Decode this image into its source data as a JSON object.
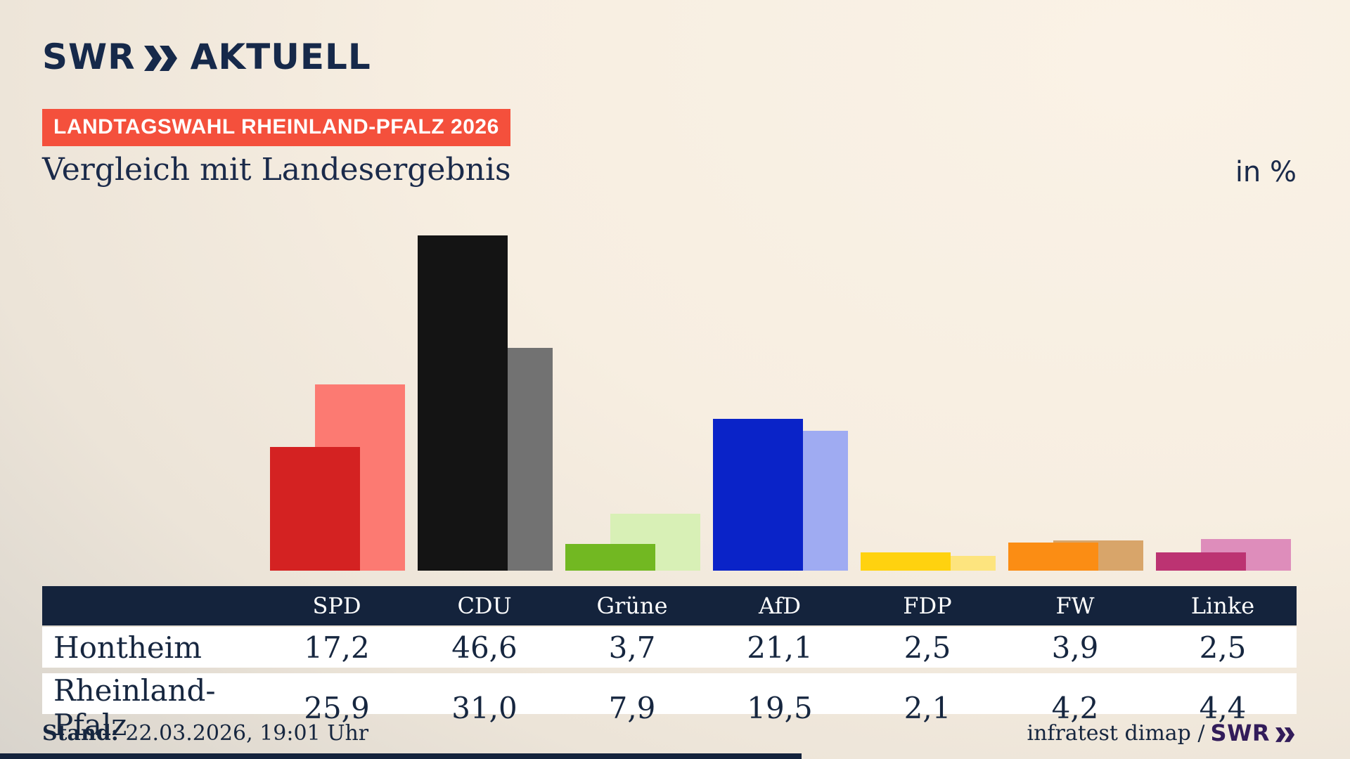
{
  "header": {
    "brand_swr": "SWR",
    "brand_aktuell": "AKTUELL",
    "badge": "LANDTAGSWAHL RHEINLAND-PFALZ 2026",
    "title": "Vergleich mit Landesergebnis",
    "unit_label": "in %"
  },
  "chart_data": {
    "type": "bar",
    "categories": [
      "SPD",
      "CDU",
      "Grüne",
      "AfD",
      "FDP",
      "FW",
      "Linke"
    ],
    "series": [
      {
        "name": "Hontheim",
        "values": [
          17.2,
          46.6,
          3.7,
          21.1,
          2.5,
          3.9,
          2.5
        ]
      },
      {
        "name": "Rheinland-Pfalz",
        "values": [
          25.9,
          31.0,
          7.9,
          19.5,
          2.1,
          4.2,
          4.4
        ]
      }
    ],
    "front_colors": [
      "#d42222",
      "#141414",
      "#72b822",
      "#0a23c8",
      "#ffd20f",
      "#fb8d14",
      "#bc3372"
    ],
    "back_colors": [
      "#fc7a72",
      "#727272",
      "#d8f0b6",
      "#9fabf2",
      "#fde47e",
      "#d8a56a",
      "#de8dbb"
    ],
    "title": "Vergleich mit Landesergebnis",
    "unit": "in %",
    "ylim": [
      0,
      50
    ],
    "value_format": "decimal-comma",
    "legend_position": "table-below",
    "grid": false
  },
  "footer": {
    "stand_label": "Stand:",
    "stand_value": "22.03.2026, 19:01 Uhr",
    "source_text": "infratest dimap /",
    "source_brand": "SWR"
  },
  "colors": {
    "navy_text": "#16263f",
    "brand_navy": "#16294a",
    "badge_red": "#f4503c",
    "table_header_bg": "#14233c",
    "row_bg": "#ffffff",
    "footer_brand_purple": "#321c5a",
    "background_light": "#faf2e6",
    "background_dark": "#cccac4"
  }
}
